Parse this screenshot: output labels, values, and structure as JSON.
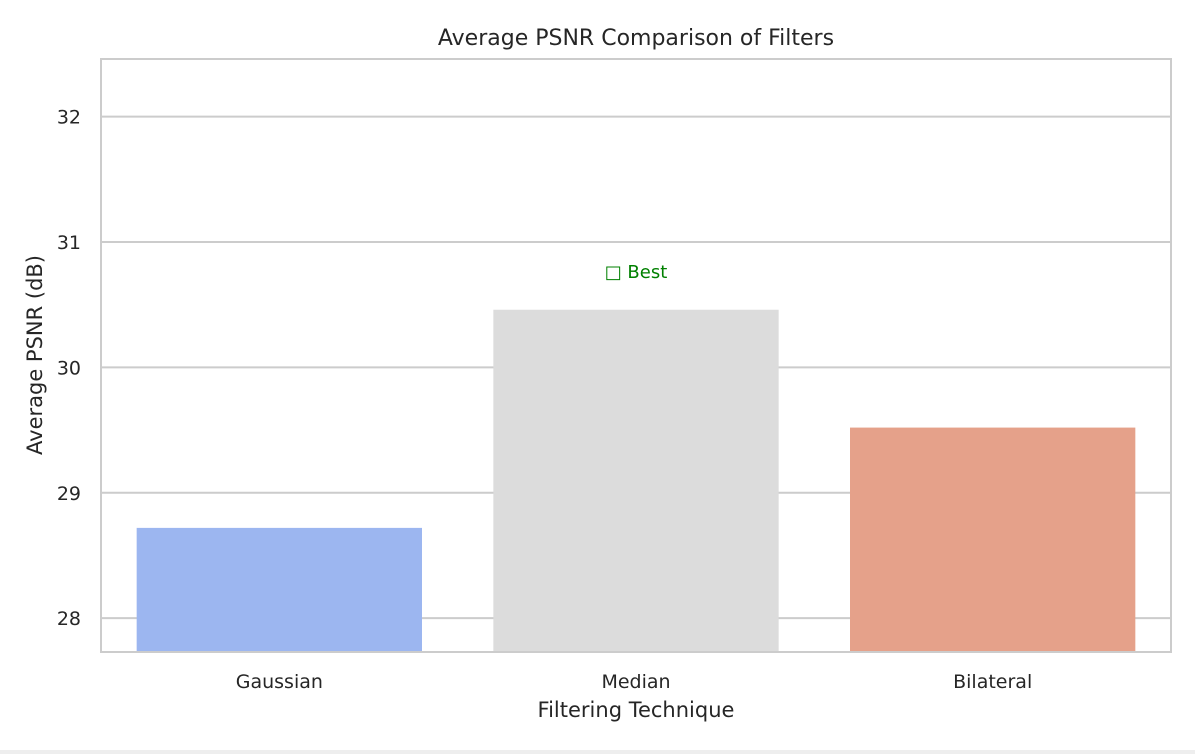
{
  "chart_data": {
    "type": "bar",
    "title": "Average PSNR Comparison of Filters",
    "xlabel": "Filtering Technique",
    "ylabel": "Average PSNR (dB)",
    "categories": [
      "Gaussian",
      "Median",
      "Bilateral"
    ],
    "values": [
      28.72,
      30.46,
      29.52
    ],
    "colors": [
      "#9cb6f0",
      "#dcdcdc",
      "#e5a18a"
    ],
    "ylim": [
      27.73,
      32.46
    ],
    "yticks": [
      28,
      29,
      30,
      31,
      32
    ],
    "ytick_labels": [
      "28",
      "29",
      "30",
      "31",
      "32"
    ],
    "grid": true,
    "annotation": {
      "text": "□ Best",
      "category": "Median",
      "y": 30.76,
      "color": "#008000"
    }
  }
}
